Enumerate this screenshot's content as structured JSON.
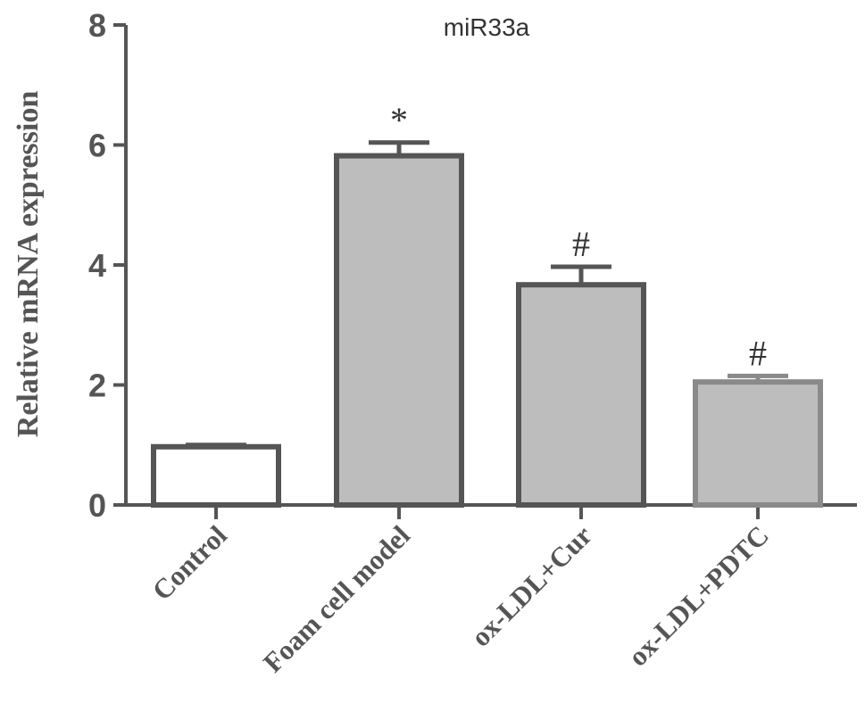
{
  "chart_data": {
    "type": "bar",
    "title": "miR33a",
    "ylabel": "Relative mRNA expression",
    "xlabel": "",
    "ylim": [
      0,
      8
    ],
    "yticks": [
      0,
      2,
      4,
      6,
      8
    ],
    "categories": [
      "Control",
      "Foam cell model",
      "ox-LDL+Cur",
      "ox-LDL+PDTC"
    ],
    "values": [
      0.97,
      5.82,
      3.67,
      2.05
    ],
    "errors": [
      0.03,
      0.22,
      0.3,
      0.1
    ],
    "annotations": [
      "",
      "*",
      "#",
      "#"
    ],
    "bar_fill_colors": [
      "#ffffff",
      "#bdbdbd",
      "#bdbdbd",
      "#bdbdbd"
    ],
    "bar_stroke_colors": [
      "#555555",
      "#555555",
      "#555555",
      "#8a8a8a"
    ],
    "grid": false,
    "legend": "none"
  }
}
